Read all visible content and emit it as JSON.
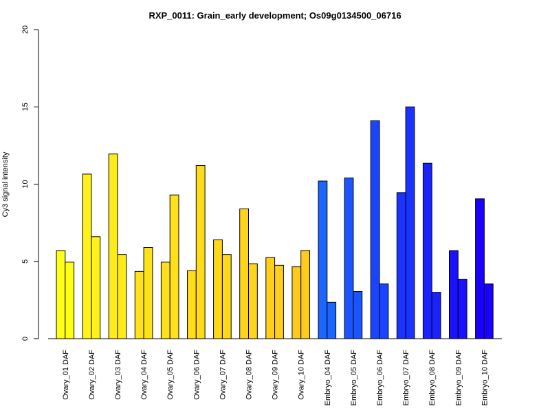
{
  "chart_data": {
    "type": "bar",
    "title": "RXP_0011: Grain_early development; Os09g0134500_06716",
    "xlabel": "",
    "ylabel": "Cy3 signal intensity",
    "ylim": [
      0,
      20
    ],
    "yticks": [
      0,
      5,
      10,
      15,
      20
    ],
    "grid": false,
    "legend": "none",
    "categories": [
      "Ovary_01 DAF",
      "Ovary_02 DAF",
      "Ovary_03 DAF",
      "Ovary_04 DAF",
      "Ovary_05 DAF",
      "Ovary_06 DAF",
      "Ovary_07 DAF",
      "Ovary_08 DAF",
      "Ovary_09 DAF",
      "Ovary_10 DAF",
      "Embryo_04 DAF",
      "Embryo_05 DAF",
      "Embryo_06 DAF",
      "Embryo_07 DAF",
      "Embryo_08 DAF",
      "Embryo_09 DAF",
      "Embryo_10 DAF"
    ],
    "series": [
      {
        "values": [
          5.7,
          10.65,
          11.95,
          4.35,
          4.95,
          4.4,
          6.4,
          8.4,
          5.25,
          4.65,
          10.2,
          10.4,
          14.1,
          9.45,
          11.35,
          5.7,
          9.05
        ]
      },
      {
        "values": [
          4.95,
          6.6,
          5.45,
          5.9,
          9.3,
          11.2,
          5.45,
          4.85,
          4.75,
          5.7,
          2.35,
          3.05,
          3.55,
          15.0,
          3.0,
          3.85,
          3.55
        ]
      }
    ],
    "group_colors": [
      "#FFFF1A",
      "#FFF21A",
      "#FFEA1A",
      "#FFE31A",
      "#FFE01A",
      "#FFDC1A",
      "#FFD81A",
      "#FFD41A",
      "#FFCF1A",
      "#FFCB1A",
      "#1A66FF",
      "#1A55FF",
      "#1A44FF",
      "#1A33FF",
      "#1A22FF",
      "#1A11FF",
      "#1A00FF"
    ]
  }
}
